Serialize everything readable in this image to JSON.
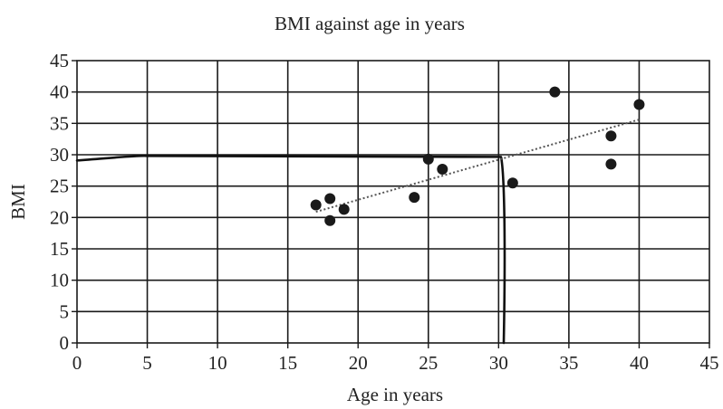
{
  "chart_data": {
    "type": "scatter",
    "title": "BMI against age in years",
    "xlabel": "Age in years",
    "ylabel": "BMI",
    "xlim": [
      0,
      45
    ],
    "ylim": [
      0,
      45
    ],
    "xticks": [
      0,
      5,
      10,
      15,
      20,
      25,
      30,
      35,
      40,
      45
    ],
    "yticks": [
      0,
      5,
      10,
      15,
      20,
      25,
      30,
      35,
      40,
      45
    ],
    "grid": true,
    "points": [
      {
        "x": 17,
        "y": 22
      },
      {
        "x": 18,
        "y": 23
      },
      {
        "x": 18,
        "y": 19.5
      },
      {
        "x": 19,
        "y": 21.3
      },
      {
        "x": 24,
        "y": 23.2
      },
      {
        "x": 25,
        "y": 29.3
      },
      {
        "x": 26,
        "y": 27.7
      },
      {
        "x": 31,
        "y": 25.5
      },
      {
        "x": 34,
        "y": 40
      },
      {
        "x": 38,
        "y": 33
      },
      {
        "x": 38,
        "y": 28.5
      },
      {
        "x": 40,
        "y": 38
      }
    ],
    "trend_line": {
      "x": [
        17,
        40
      ],
      "y": [
        20.9,
        35.6
      ]
    },
    "reading_lines": {
      "horizontal": {
        "y": 29.8,
        "x_from": 0,
        "x_to": 30.3
      },
      "vertical": {
        "x": 30.3,
        "y_from": 29.8,
        "y_to": 0
      }
    }
  }
}
